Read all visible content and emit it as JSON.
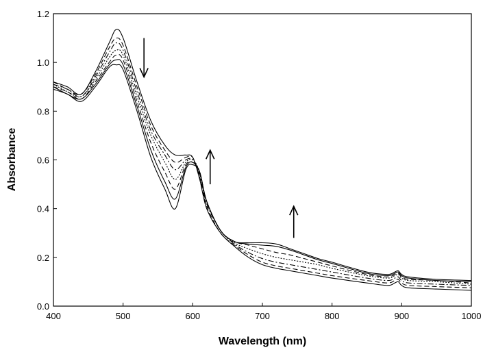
{
  "chart_data": {
    "type": "line",
    "title": "",
    "xlabel": "Wavelength (nm)",
    "ylabel": "Absorbance",
    "xlim": [
      400,
      1000
    ],
    "ylim": [
      0.0,
      1.2
    ],
    "xticks": [
      "400",
      "500",
      "600",
      "700",
      "800",
      "900",
      "1000"
    ],
    "yticks": [
      "0.0",
      "0.2",
      "0.4",
      "0.6",
      "0.8",
      "1.0",
      "1.2"
    ],
    "grid": false,
    "legend": "none",
    "x": [
      400,
      420,
      440,
      460,
      480,
      490,
      500,
      520,
      540,
      560,
      575,
      590,
      600,
      610,
      620,
      640,
      660,
      680,
      700,
      720,
      740,
      760,
      780,
      800,
      850,
      880,
      890,
      895,
      900,
      910,
      950,
      1000
    ],
    "series": [
      {
        "dash": "solid",
        "values": [
          0.92,
          0.9,
          0.87,
          0.96,
          1.08,
          1.135,
          1.1,
          0.92,
          0.76,
          0.66,
          0.62,
          0.62,
          0.61,
          0.52,
          0.4,
          0.3,
          0.245,
          0.2,
          0.17,
          0.155,
          0.145,
          0.135,
          0.125,
          0.115,
          0.095,
          0.085,
          0.095,
          0.1,
          0.085,
          0.075,
          0.07,
          0.065
        ]
      },
      {
        "dash": "dash",
        "values": [
          0.92,
          0.89,
          0.87,
          0.95,
          1.06,
          1.1,
          1.07,
          0.9,
          0.74,
          0.64,
          0.59,
          0.61,
          0.61,
          0.53,
          0.41,
          0.3,
          0.25,
          0.21,
          0.18,
          0.165,
          0.155,
          0.145,
          0.135,
          0.125,
          0.105,
          0.095,
          0.105,
          0.11,
          0.095,
          0.085,
          0.08,
          0.075
        ]
      },
      {
        "dash": "dashdot",
        "values": [
          0.91,
          0.89,
          0.86,
          0.94,
          1.04,
          1.08,
          1.05,
          0.88,
          0.72,
          0.62,
          0.56,
          0.6,
          0.6,
          0.54,
          0.42,
          0.31,
          0.255,
          0.22,
          0.195,
          0.18,
          0.17,
          0.16,
          0.15,
          0.14,
          0.115,
          0.105,
          0.115,
          0.12,
          0.105,
          0.095,
          0.09,
          0.085
        ]
      },
      {
        "dash": "dot",
        "values": [
          0.91,
          0.88,
          0.86,
          0.93,
          1.02,
          1.05,
          1.03,
          0.86,
          0.7,
          0.59,
          0.52,
          0.59,
          0.6,
          0.55,
          0.43,
          0.31,
          0.26,
          0.235,
          0.215,
          0.2,
          0.19,
          0.18,
          0.17,
          0.155,
          0.125,
          0.115,
          0.125,
          0.13,
          0.115,
          0.105,
          0.1,
          0.09
        ]
      },
      {
        "dash": "dash",
        "values": [
          0.9,
          0.88,
          0.85,
          0.92,
          1.0,
          1.03,
          1.01,
          0.84,
          0.67,
          0.55,
          0.48,
          0.58,
          0.59,
          0.55,
          0.43,
          0.31,
          0.265,
          0.25,
          0.235,
          0.22,
          0.21,
          0.195,
          0.18,
          0.165,
          0.13,
          0.12,
          0.13,
          0.135,
          0.12,
          0.11,
          0.105,
          0.095
        ]
      },
      {
        "dash": "solid",
        "values": [
          0.9,
          0.87,
          0.85,
          0.91,
          0.99,
          1.01,
          0.99,
          0.82,
          0.64,
          0.51,
          0.44,
          0.57,
          0.59,
          0.55,
          0.43,
          0.31,
          0.265,
          0.255,
          0.25,
          0.245,
          0.23,
          0.21,
          0.19,
          0.175,
          0.135,
          0.125,
          0.135,
          0.14,
          0.125,
          0.115,
          0.105,
          0.1
        ]
      },
      {
        "dash": "solid",
        "values": [
          0.89,
          0.87,
          0.84,
          0.9,
          0.98,
          0.99,
          0.97,
          0.8,
          0.61,
          0.48,
          0.4,
          0.56,
          0.58,
          0.55,
          0.43,
          0.31,
          0.265,
          0.26,
          0.26,
          0.255,
          0.235,
          0.215,
          0.195,
          0.18,
          0.14,
          0.13,
          0.14,
          0.145,
          0.13,
          0.12,
          0.11,
          0.105
        ]
      }
    ],
    "annotations": [
      {
        "symbol": "down-arrow",
        "x": 530,
        "y_from": 1.1,
        "y_to": 0.94
      },
      {
        "symbol": "up-arrow",
        "x": 625,
        "y_from": 0.5,
        "y_to": 0.64
      },
      {
        "symbol": "up-arrow",
        "x": 745,
        "y_from": 0.28,
        "y_to": 0.41
      }
    ]
  }
}
